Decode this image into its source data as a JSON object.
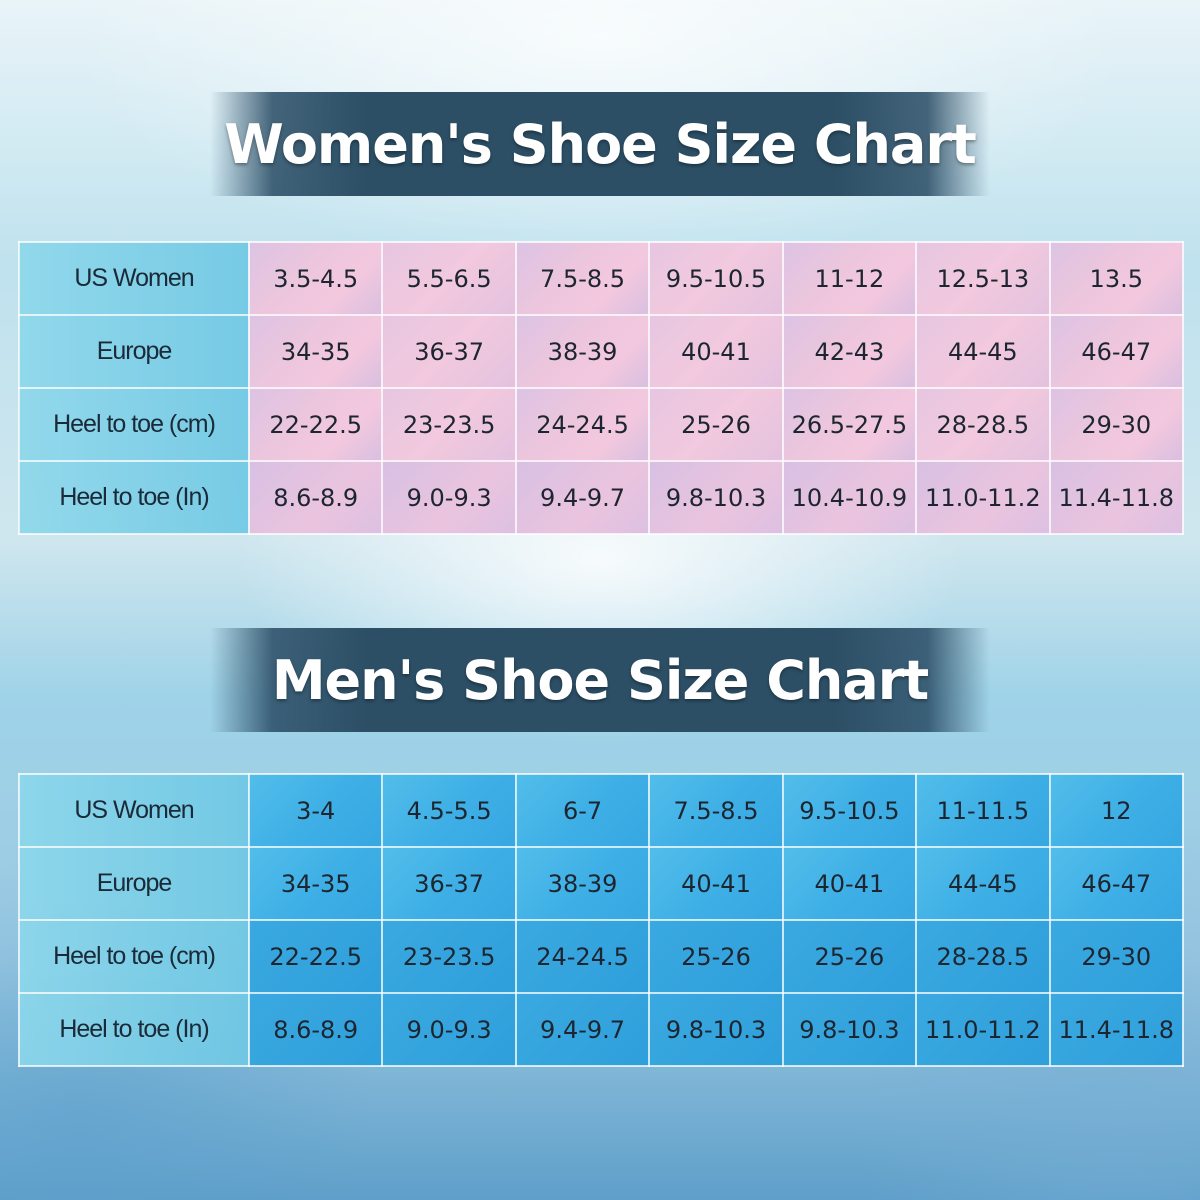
{
  "women": {
    "title": "Women's Shoe Size Chart",
    "rows": [
      {
        "label": "US Women",
        "values": [
          "3.5-4.5",
          "5.5-6.5",
          "7.5-8.5",
          "9.5-10.5",
          "11-12",
          "12.5-13",
          "13.5"
        ]
      },
      {
        "label": "Europe",
        "values": [
          "34-35",
          "36-37",
          "38-39",
          "40-41",
          "42-43",
          "44-45",
          "46-47"
        ]
      },
      {
        "label": "Heel to toe (cm)",
        "values": [
          "22-22.5",
          "23-23.5",
          "24-24.5",
          "25-26",
          "26.5-27.5",
          "28-28.5",
          "29-30"
        ]
      },
      {
        "label": "Heel to toe (In)",
        "values": [
          "8.6-8.9",
          "9.0-9.3",
          "9.4-9.7",
          "9.8-10.3",
          "10.4-10.9",
          "11.0-11.2",
          "11.4-11.8"
        ]
      }
    ]
  },
  "men": {
    "title": "Men's Shoe Size Chart",
    "rows": [
      {
        "label": "US Women",
        "values": [
          "3-4",
          "4.5-5.5",
          "6-7",
          "7.5-8.5",
          "9.5-10.5",
          "11-11.5",
          "12"
        ]
      },
      {
        "label": "Europe",
        "values": [
          "34-35",
          "36-37",
          "38-39",
          "40-41",
          "40-41",
          "44-45",
          "46-47"
        ]
      },
      {
        "label": "Heel to toe (cm)",
        "values": [
          "22-22.5",
          "23-23.5",
          "24-24.5",
          "25-26",
          "25-26",
          "28-28.5",
          "29-30"
        ]
      },
      {
        "label": "Heel to toe (In)",
        "values": [
          "8.6-8.9",
          "9.0-9.3",
          "9.4-9.7",
          "9.8-10.3",
          "9.8-10.3",
          "11.0-11.2",
          "11.4-11.8"
        ]
      }
    ]
  }
}
